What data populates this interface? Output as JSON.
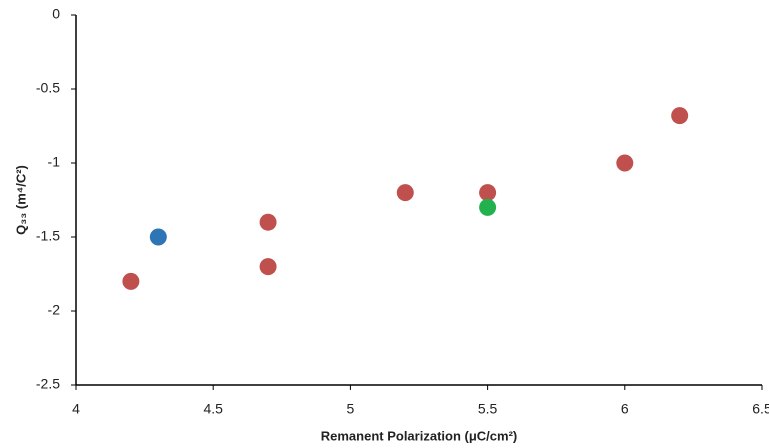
{
  "chart_data": {
    "type": "scatter",
    "x_label": "Remanent Polarization (μC/cm²)",
    "y_label": "Q₃₃ (m⁴/C²)",
    "xlim": [
      4,
      6.5
    ],
    "xticks": [
      4,
      4.5,
      5,
      5.5,
      6,
      6.5
    ],
    "ylim": [
      -2.5,
      0
    ],
    "yticks": [
      0,
      -0.5,
      -1,
      -1.5,
      -2,
      -2.5
    ],
    "grid": false,
    "series": [
      {
        "color": "#c0504d",
        "x": [
          4.2,
          4.7,
          4.7,
          5.2,
          5.5,
          6,
          6.2
        ],
        "values": [
          -1.8,
          -1.4,
          -1.7,
          -1.2,
          -1.2,
          -1,
          -0.68
        ]
      },
      {
        "color": "#2e75b6",
        "x": [
          4.3
        ],
        "values": [
          -1.5
        ]
      },
      {
        "color": "#22b14c",
        "x": [
          5.5
        ],
        "values": [
          -1.3
        ]
      }
    ]
  }
}
